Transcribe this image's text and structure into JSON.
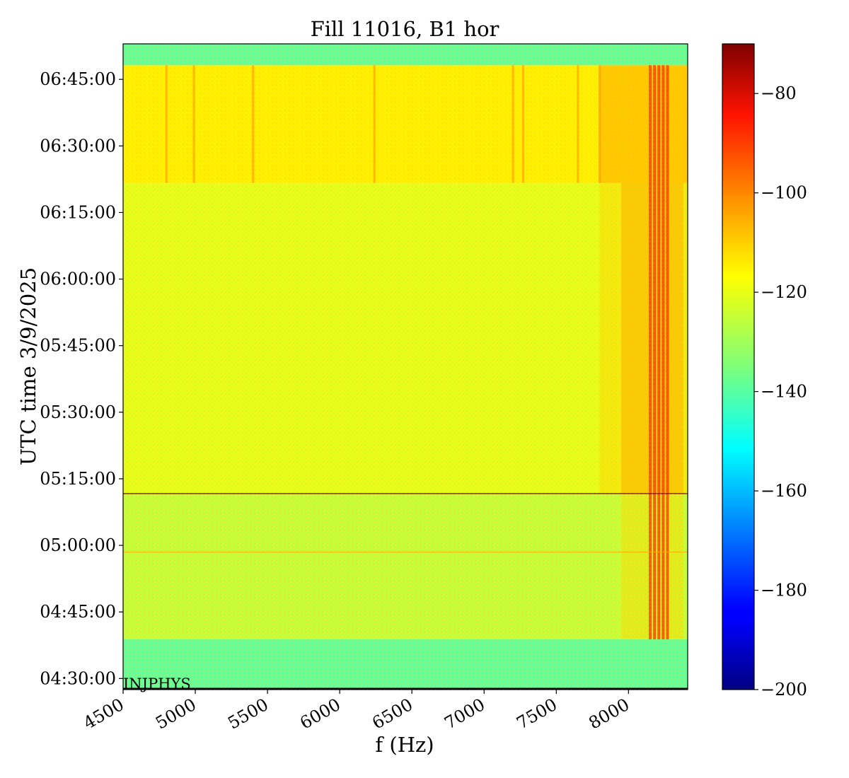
{
  "chart_data": {
    "type": "heatmap",
    "title": "Fill 11016, B1 hor",
    "xlabel": "f (Hz)",
    "ylabel": "UTC time 3/9/2025",
    "xlim": [
      4500,
      8410
    ],
    "ylim": [
      "04:27:30",
      "06:53:00"
    ],
    "x_ticks": [
      4500,
      5000,
      5500,
      6000,
      6500,
      7000,
      7500,
      8000
    ],
    "x_tick_labels": [
      "4500",
      "5000",
      "5500",
      "6000",
      "6500",
      "7000",
      "7500",
      "8000"
    ],
    "y_ticks": [
      "04:30:00",
      "04:45:00",
      "05:00:00",
      "05:15:00",
      "05:30:00",
      "05:45:00",
      "06:00:00",
      "06:15:00",
      "06:30:00",
      "06:45:00"
    ],
    "colorbar": {
      "colormap": "jet",
      "range": [
        -200,
        -70
      ],
      "ticks": [
        -200,
        -180,
        -160,
        -140,
        -120,
        -100,
        -80
      ],
      "tick_labels": [
        "−200",
        "−180",
        "−160",
        "−140",
        "−120",
        "−100",
        "−80"
      ]
    },
    "bands": [
      {
        "from": "04:27:30",
        "to": "04:38:50",
        "level": -138
      },
      {
        "from": "04:38:50",
        "to": "05:11:40",
        "level": -126
      },
      {
        "from": "05:11:40",
        "to": "06:21:40",
        "level": -122
      },
      {
        "from": "06:21:40",
        "to": "06:48:10",
        "level": -117
      },
      {
        "from": "06:48:10",
        "to": "06:53:00",
        "level": -138
      }
    ],
    "annotation": "INJPHYS",
    "grid": false
  }
}
